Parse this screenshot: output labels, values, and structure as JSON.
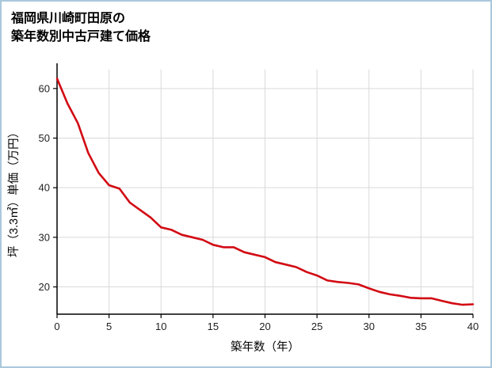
{
  "title": {
    "line1": "福岡県川崎町田原の",
    "line2": "築年数別中古戸建て価格"
  },
  "chart_data": {
    "type": "line",
    "title": "福岡県川崎町田原の築年数別中古戸建て価格",
    "xlabel": "築年数（年）",
    "ylabel": "坪（3.3㎡）単価（万円）",
    "x": [
      0,
      1,
      2,
      3,
      4,
      5,
      6,
      7,
      8,
      9,
      10,
      11,
      12,
      13,
      14,
      15,
      16,
      17,
      18,
      19,
      20,
      21,
      22,
      23,
      24,
      25,
      26,
      27,
      28,
      29,
      30,
      31,
      32,
      33,
      34,
      35,
      36,
      37,
      38,
      39,
      40
    ],
    "values": [
      62,
      57,
      53,
      47,
      43,
      40.5,
      39.8,
      37,
      35.5,
      34,
      32,
      31.5,
      30.5,
      30,
      29.5,
      28.5,
      28,
      28,
      27,
      26.5,
      26,
      25,
      24.5,
      24,
      23,
      22.3,
      21.3,
      21,
      20.8,
      20.5,
      19.7,
      19,
      18.5,
      18.2,
      17.8,
      17.7,
      17.7,
      17.2,
      16.7,
      16.4,
      16.5
    ],
    "xlim": [
      0,
      40
    ],
    "ylim": [
      14.5,
      63.8
    ],
    "xticks": [
      0,
      5,
      10,
      15,
      20,
      25,
      30,
      35,
      40
    ],
    "yticks": [
      20,
      30,
      40,
      50,
      60
    ],
    "grid": true,
    "legend": "none",
    "line_color": "#d20a13",
    "colors": {
      "grid": "#d9d9d9",
      "axis": "#000000",
      "tick_text": "#222222",
      "border": "#a9c8dc"
    }
  }
}
